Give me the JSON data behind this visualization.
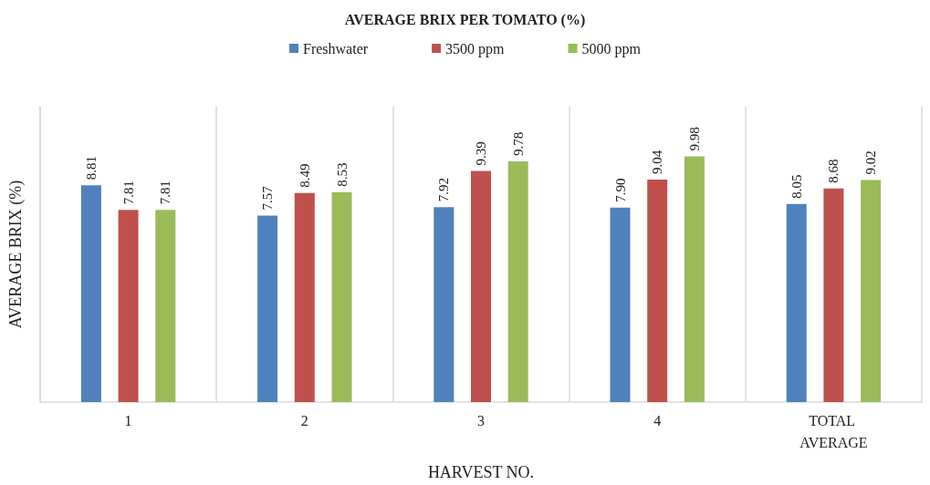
{
  "chart_data": {
    "type": "bar",
    "title": "AVERAGE BRIX PER TOMATO (%)",
    "xlabel": "HARVEST NO.",
    "ylabel": "AVERAGE BRIX (%)",
    "categories": [
      "1",
      "2",
      "3",
      "4",
      "TOTAL AVERAGE"
    ],
    "series": [
      {
        "name": "Freshwater",
        "color": "#4f81bd",
        "values": [
          8.81,
          7.57,
          7.92,
          7.9,
          8.05
        ],
        "value_labels": [
          "8.81",
          "7.57",
          "7.92",
          "7.90",
          "8.05"
        ]
      },
      {
        "name": "3500 ppm",
        "color": "#c0504d",
        "values": [
          7.81,
          8.49,
          9.39,
          9.04,
          8.68
        ],
        "value_labels": [
          "7.81",
          "8.49",
          "9.39",
          "9.04",
          "8.68"
        ]
      },
      {
        "name": "5000 ppm",
        "color": "#9bbb59",
        "values": [
          7.81,
          8.53,
          9.78,
          9.98,
          9.02
        ],
        "value_labels": [
          "7.81",
          "8.53",
          "9.78",
          "9.98",
          "9.02"
        ]
      }
    ],
    "ylim": [
      0,
      12
    ],
    "tick_labels": "x",
    "grid": "x",
    "legend": "top"
  }
}
